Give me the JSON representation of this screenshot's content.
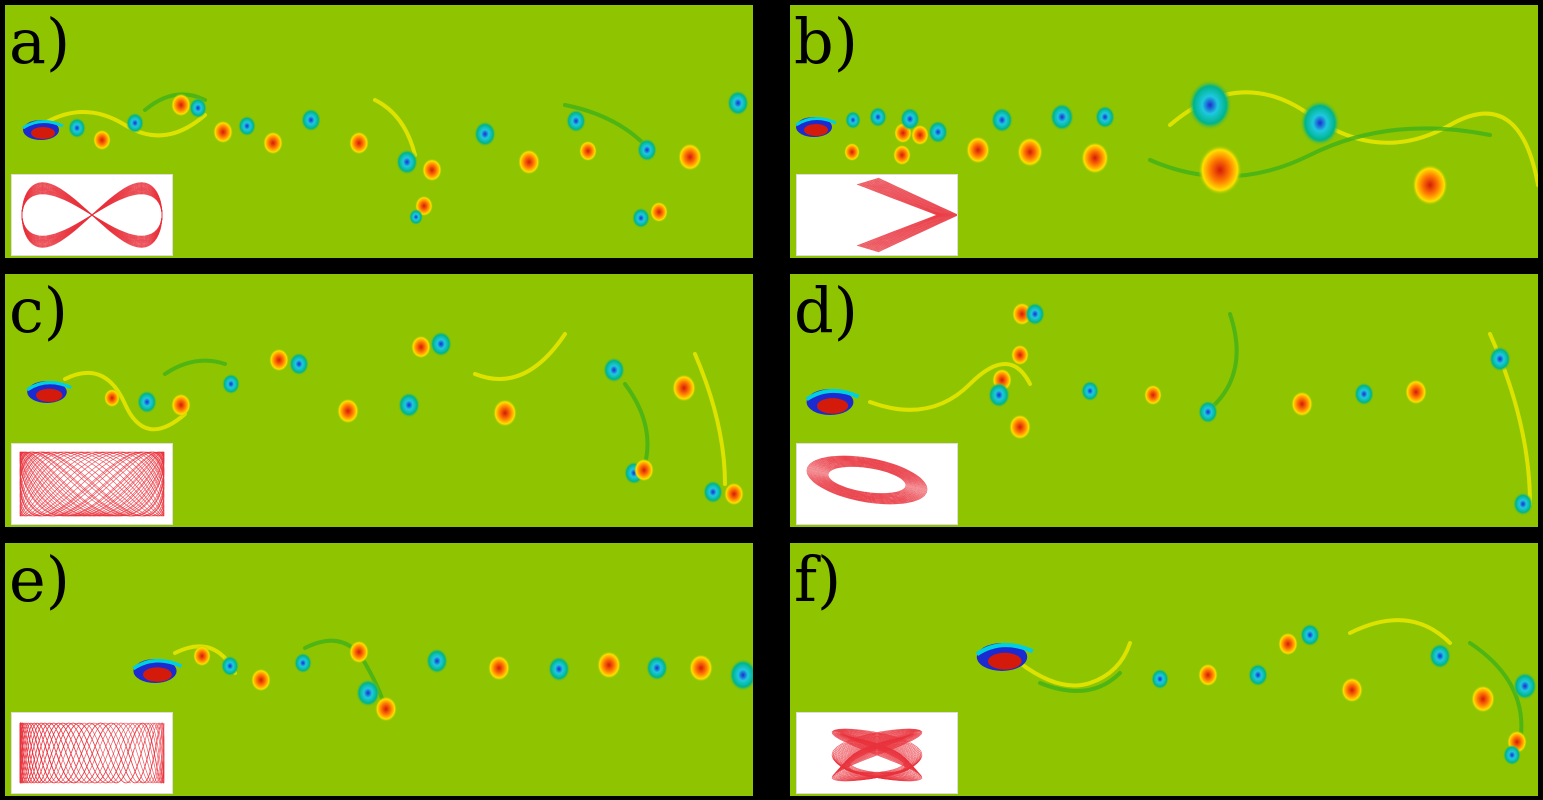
{
  "figure": {
    "panels": [
      {
        "id": "a",
        "label": "a)"
      },
      {
        "id": "b",
        "label": "b)"
      },
      {
        "id": "c",
        "label": "c)"
      },
      {
        "id": "d",
        "label": "d)"
      },
      {
        "id": "e",
        "label": "e)"
      },
      {
        "id": "f",
        "label": "f)"
      }
    ]
  },
  "colors": {
    "background": "#8ec400",
    "positive_vortex": "#ff7a00",
    "positive_core": "#d41a0a",
    "negative_vortex": "#00b48a",
    "negative_core": "#1b2bd0",
    "trajectory": "#e8323c",
    "divider": "#000000"
  }
}
